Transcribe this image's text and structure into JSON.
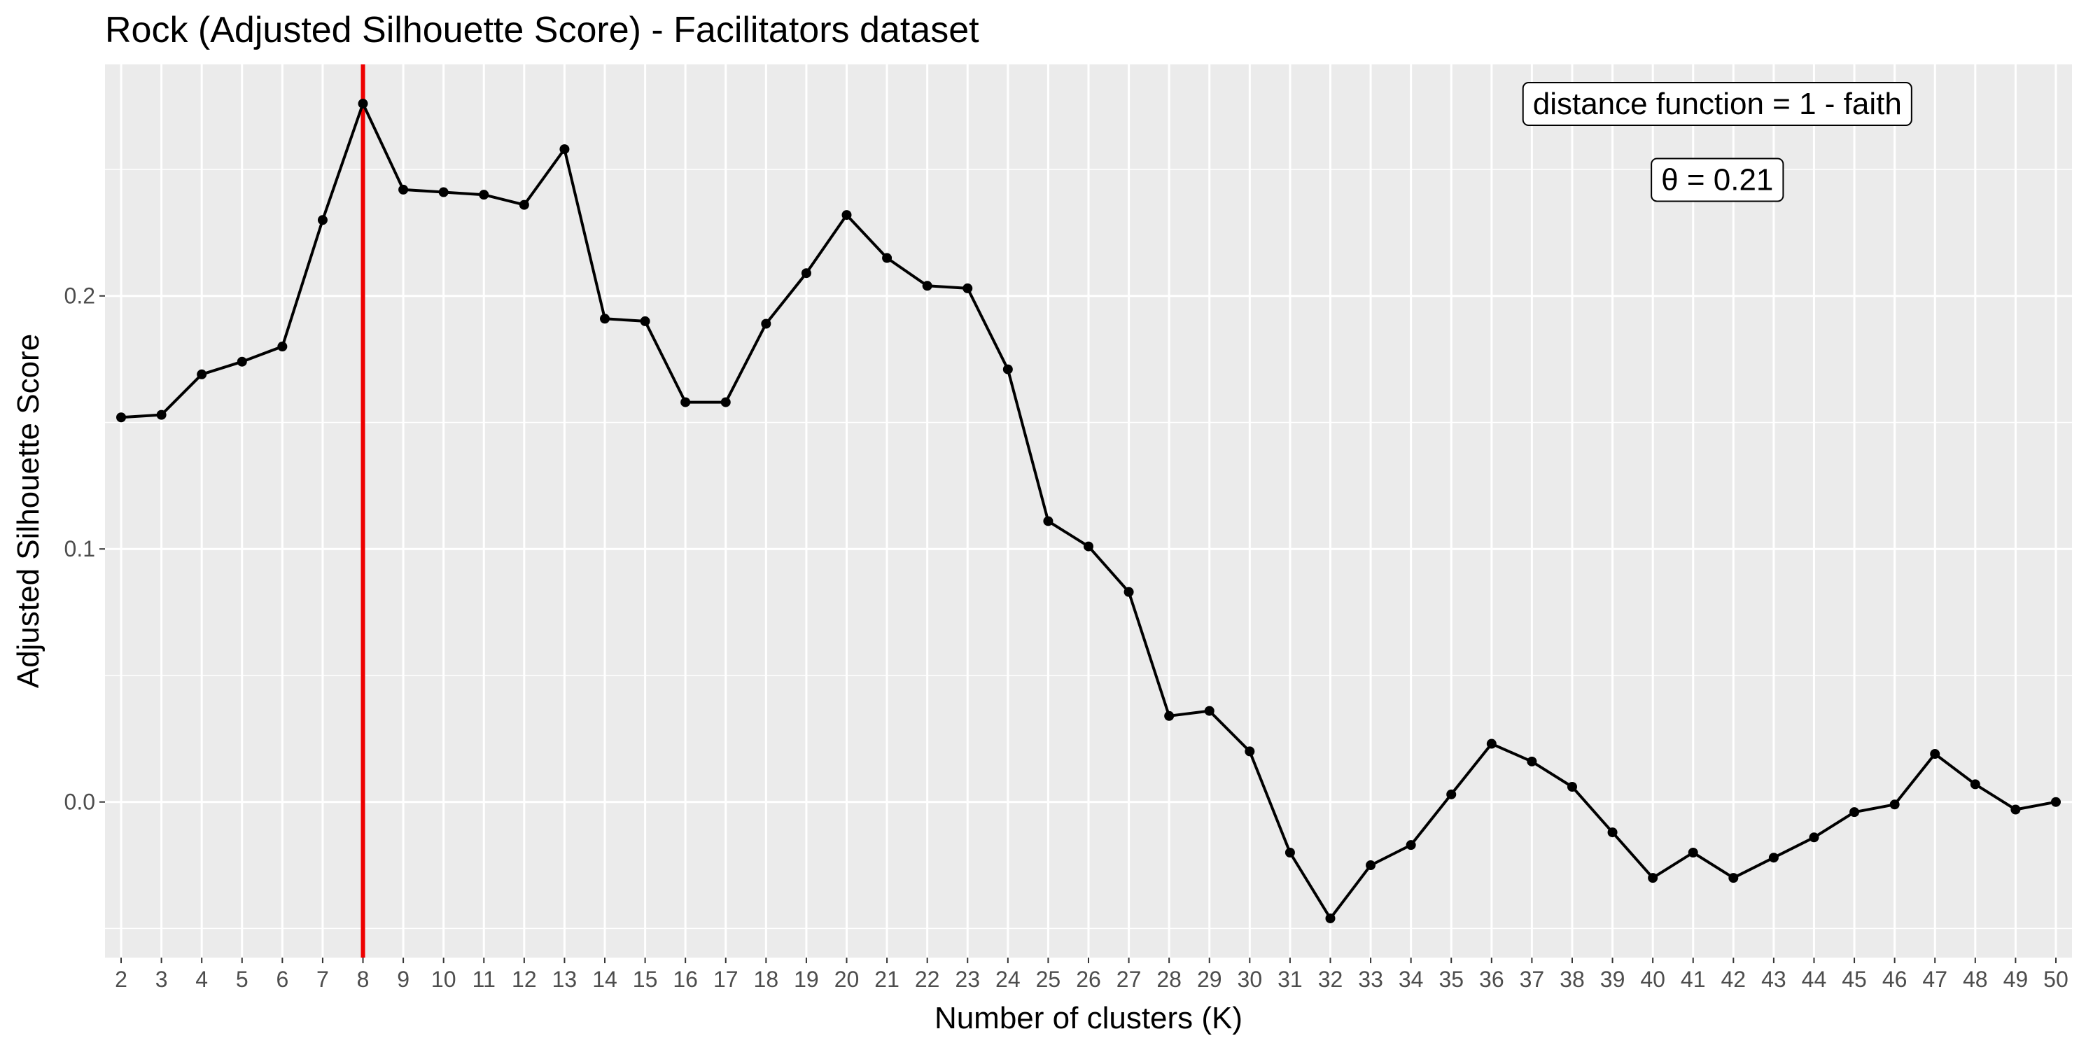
{
  "chart_data": {
    "type": "line",
    "title": "Rock (Adjusted Silhouette Score) - Facilitators dataset",
    "xlabel": "Number of clusters (K)",
    "ylabel": "Adjusted Silhouette Score",
    "x": [
      2,
      3,
      4,
      5,
      6,
      7,
      8,
      9,
      10,
      11,
      12,
      13,
      14,
      15,
      16,
      17,
      18,
      19,
      20,
      21,
      22,
      23,
      24,
      25,
      26,
      27,
      28,
      29,
      30,
      31,
      32,
      33,
      34,
      35,
      36,
      37,
      38,
      39,
      40,
      41,
      42,
      43,
      44,
      45,
      46,
      47,
      48,
      49,
      50
    ],
    "series": [
      {
        "values": [
          0.152,
          0.153,
          0.169,
          0.174,
          0.18,
          0.23,
          0.276,
          0.242,
          0.241,
          0.24,
          0.236,
          0.258,
          0.191,
          0.19,
          0.158,
          0.158,
          0.189,
          0.209,
          0.232,
          0.215,
          0.204,
          0.203,
          0.171,
          0.111,
          0.101,
          0.083,
          0.034,
          0.036,
          0.02,
          -0.02,
          -0.046,
          -0.025,
          -0.017,
          0.003,
          0.023,
          0.016,
          0.006,
          -0.012,
          -0.03,
          -0.02,
          -0.03,
          -0.022,
          -0.014,
          -0.004,
          -0.001,
          0.019,
          0.007,
          -0.003,
          0.0
        ],
        "color": "#000000"
      }
    ],
    "xlim": [
      1.6,
      50.4
    ],
    "ylim": [
      -0.0615,
      0.2915
    ],
    "y_ticks": [
      0.0,
      0.1,
      0.2
    ],
    "y_tick_labels": [
      "0.0",
      "0.1",
      "0.2"
    ],
    "vline": {
      "x": 8,
      "color": "#ee0000"
    },
    "annotations": [
      {
        "text": "distance function = 1 -  faith",
        "x": 41.6,
        "y": 0.276
      },
      {
        "text": "θ = 0.21",
        "x": 41.6,
        "y": 0.246
      }
    ],
    "grid": true,
    "panel_background": "#ebebeb",
    "grid_color": "#ffffff",
    "legend": "none"
  }
}
